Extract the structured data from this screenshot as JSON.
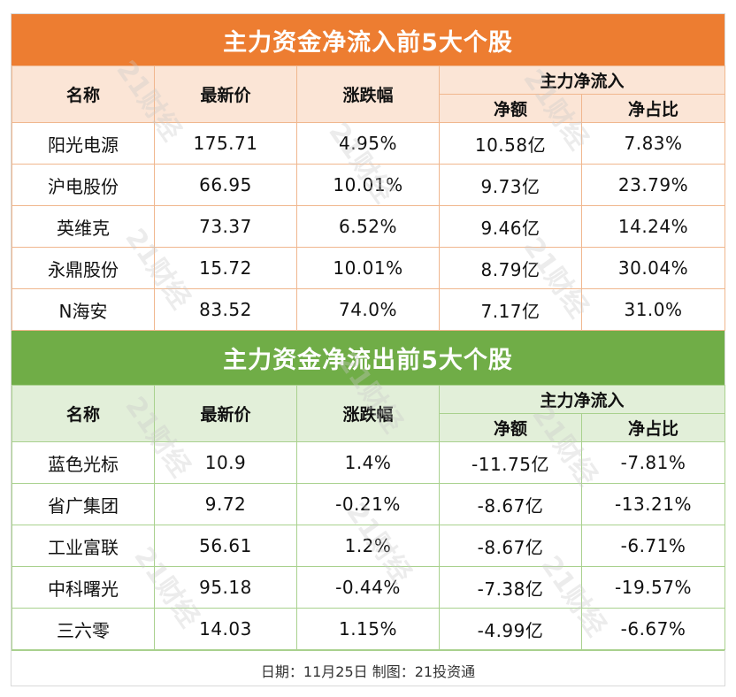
{
  "inflow": {
    "title": "主力资金净流入前5大个股",
    "headers": {
      "name": "名称",
      "price": "最新价",
      "change": "涨跌幅",
      "group": "主力净流入",
      "net": "净额",
      "ratio": "净占比"
    },
    "rows": [
      {
        "name": "阳光电源",
        "price": "175.71",
        "change": "4.95%",
        "net": "10.58亿",
        "ratio": "7.83%"
      },
      {
        "name": "沪电股份",
        "price": "66.95",
        "change": "10.01%",
        "net": "9.73亿",
        "ratio": "23.79%"
      },
      {
        "name": "英维克",
        "price": "73.37",
        "change": "6.52%",
        "net": "9.46亿",
        "ratio": "14.24%"
      },
      {
        "name": "永鼎股份",
        "price": "15.72",
        "change": "10.01%",
        "net": "8.79亿",
        "ratio": "30.04%"
      },
      {
        "name": "N海安",
        "price": "83.52",
        "change": "74.0%",
        "net": "7.17亿",
        "ratio": "31.0%"
      }
    ]
  },
  "outflow": {
    "title": "主力资金净流出前5大个股",
    "headers": {
      "name": "名称",
      "price": "最新价",
      "change": "涨跌幅",
      "group": "主力净流入",
      "net": "净额",
      "ratio": "净占比"
    },
    "rows": [
      {
        "name": "蓝色光标",
        "price": "10.9",
        "change": "1.4%",
        "net": "-11.75亿",
        "ratio": "-7.81%"
      },
      {
        "name": "省广集团",
        "price": "9.72",
        "change": "-0.21%",
        "net": "-8.67亿",
        "ratio": "-13.21%"
      },
      {
        "name": "工业富联",
        "price": "56.61",
        "change": "1.2%",
        "net": "-8.67亿",
        "ratio": "-6.71%"
      },
      {
        "name": "中科曙光",
        "price": "95.18",
        "change": "-0.44%",
        "net": "-7.38亿",
        "ratio": "-19.57%"
      },
      {
        "name": "三六零",
        "price": "14.03",
        "change": "1.15%",
        "net": "-4.99亿",
        "ratio": "-6.67%"
      }
    ]
  },
  "footer": "日期：11月25日 制图：21投资通",
  "watermark": "21财经",
  "colors": {
    "inflow_header": "#ed7d31",
    "outflow_header": "#70ad47"
  }
}
